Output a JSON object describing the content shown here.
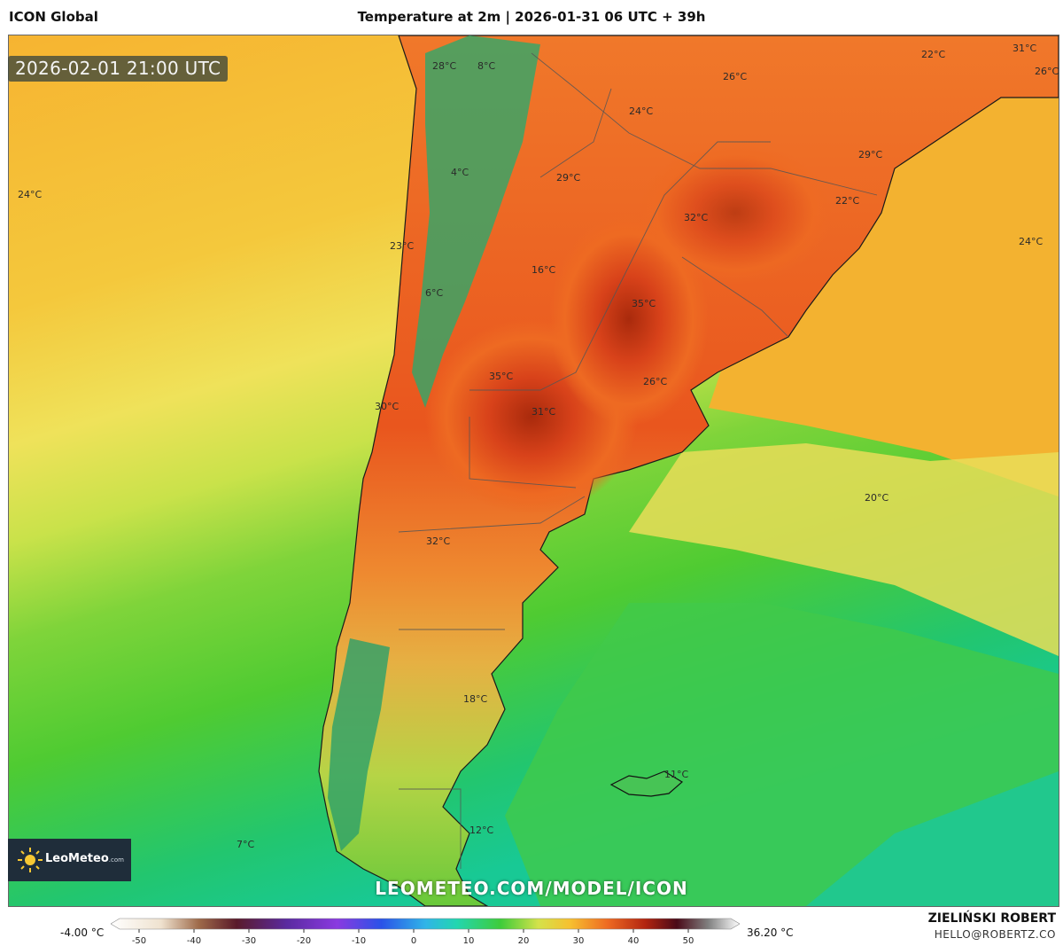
{
  "header": {
    "model": "ICON Global",
    "title": "Temperature at 2m | 2026-01-31 06 UTC + 39h"
  },
  "map": {
    "valid_time": "2026-02-01 21:00 UTC",
    "labels": [
      "28°C",
      "8°C",
      "31°C",
      "22°C",
      "26°C",
      "26°C",
      "24°C",
      "4°C",
      "29°C",
      "29°C",
      "24°C",
      "22°C",
      "32°C",
      "23°C",
      "16°C",
      "24°C",
      "6°C",
      "35°C",
      "35°C",
      "26°C",
      "30°C",
      "31°C",
      "20°C",
      "32°C",
      "18°C",
      "11°C",
      "7°C",
      "12°C"
    ],
    "colors": {
      "ocean_warm": "#f5b532",
      "ocean_mild": "#f0df55",
      "ocean_cool": "#5ccd2a",
      "ocean_cold": "#1cc98d",
      "land_hot": "#e8541c",
      "land_hottest": "#b9300e",
      "andes_cold": "#2fa86a"
    }
  },
  "legend": {
    "min_label": "-4.00 °C",
    "max_label": "36.20 °C",
    "ticks": [
      "-50",
      "-40",
      "-30",
      "-20",
      "-10",
      "0",
      "10",
      "20",
      "30",
      "40",
      "50"
    ]
  },
  "branding": {
    "logo": "LeoMeteo",
    "logo_suffix": ".com",
    "url": "LEOMETEO.COM/MODEL/ICON",
    "author": "ZIELIŃSKI ROBERT",
    "email": "HELLO@ROBERTZ.CO"
  }
}
